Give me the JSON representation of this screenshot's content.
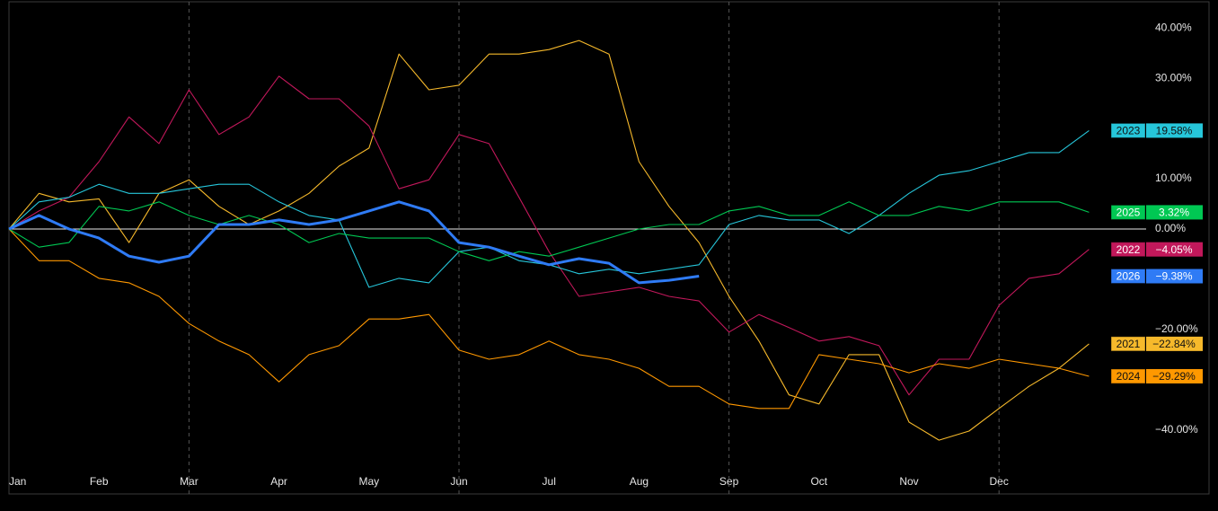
{
  "chart_data": {
    "type": "line",
    "categories": [
      "Jan",
      null,
      null,
      "Feb",
      null,
      null,
      "Mar",
      null,
      null,
      "Apr",
      null,
      null,
      "May",
      null,
      null,
      "Jun",
      null,
      null,
      "Jul",
      null,
      null,
      "Aug",
      null,
      null,
      "Sep",
      null,
      null,
      "Oct",
      null,
      null,
      "Nov",
      null,
      null,
      "Dec",
      null,
      null,
      null
    ],
    "ylim": [
      -52.7,
      45.2
    ],
    "yticks": [
      {
        "value": 40,
        "label": "40.00%"
      },
      {
        "value": 30,
        "label": "30.00%"
      },
      {
        "value": 10,
        "label": "10.00%"
      },
      {
        "value": 0,
        "label": "0.00%"
      },
      {
        "value": -20,
        "label": "−20.00%"
      },
      {
        "value": -40,
        "label": "−40.00%"
      }
    ],
    "series": [
      {
        "name": "2021",
        "color": "#f6b92b",
        "end_label": "−22.84%",
        "values": [
          0,
          7.1,
          5.4,
          6.0,
          -2.7,
          7.1,
          9.8,
          4.5,
          0.9,
          3.6,
          7.1,
          12.5,
          16.1,
          34.8,
          27.7,
          28.6,
          34.8,
          34.8,
          35.7,
          37.5,
          34.8,
          13.4,
          4.5,
          -2.7,
          -13.4,
          -22.3,
          -33.0,
          -34.8,
          -25.0,
          -25.0,
          -38.4,
          -42.0,
          -40.2,
          -35.7,
          -31.3,
          -27.7,
          -22.84
        ]
      },
      {
        "name": "2022",
        "color": "#c2185b",
        "end_label": "−4.05%",
        "values": [
          0,
          3.6,
          6.3,
          13.4,
          22.3,
          17.0,
          27.7,
          18.8,
          22.3,
          30.4,
          25.9,
          25.9,
          20.5,
          8.0,
          9.8,
          18.8,
          17.0,
          6.3,
          -4.5,
          -13.4,
          -12.5,
          -11.6,
          -13.4,
          -14.3,
          -20.5,
          -17.0,
          -19.6,
          -22.3,
          -21.4,
          -23.2,
          -33.0,
          -25.9,
          -25.9,
          -15.2,
          -9.8,
          -8.9,
          -4.05
        ]
      },
      {
        "name": "2023",
        "color": "#26c6da",
        "end_label": "19.58%",
        "values": [
          0,
          5.4,
          6.3,
          8.9,
          7.1,
          7.1,
          8.0,
          8.9,
          8.9,
          5.4,
          2.7,
          1.8,
          -11.6,
          -9.8,
          -10.7,
          -4.5,
          -3.6,
          -6.3,
          -7.1,
          -8.9,
          -8.0,
          -8.9,
          -8.0,
          -7.1,
          0.9,
          2.7,
          1.8,
          1.8,
          -0.9,
          2.7,
          7.1,
          10.7,
          11.6,
          13.4,
          15.2,
          15.2,
          19.58
        ]
      },
      {
        "name": "2024",
        "color": "#ff9800",
        "end_label": "−29.29%",
        "values": [
          0,
          -6.3,
          -6.3,
          -9.8,
          -10.7,
          -13.4,
          -18.8,
          -22.3,
          -25.0,
          -30.4,
          -25.0,
          -23.2,
          -17.9,
          -17.9,
          -17.0,
          -24.1,
          -25.9,
          -25.0,
          -22.3,
          -25.0,
          -25.9,
          -27.7,
          -31.3,
          -31.3,
          -34.8,
          -35.7,
          -35.7,
          -25.0,
          -25.9,
          -26.8,
          -28.6,
          -26.8,
          -27.7,
          -25.9,
          -26.8,
          -27.7,
          -29.29
        ]
      },
      {
        "name": "2025",
        "color": "#00c853",
        "end_label": "3.32%",
        "values": [
          0,
          -3.6,
          -2.7,
          4.5,
          3.6,
          5.4,
          2.7,
          0.9,
          2.7,
          0.9,
          -2.7,
          -0.9,
          -1.8,
          -1.8,
          -1.8,
          -4.5,
          -6.3,
          -4.5,
          -5.4,
          -3.6,
          -1.8,
          0,
          0.9,
          0.9,
          3.6,
          4.5,
          2.7,
          2.7,
          5.4,
          2.7,
          2.7,
          4.5,
          3.6,
          5.4,
          5.4,
          5.4,
          3.32
        ]
      },
      {
        "name": "2026",
        "color": "#2f7bf5",
        "end_label": "−9.38%",
        "values": [
          0,
          2.7,
          0,
          -1.8,
          -5.4,
          -6.6,
          -5.4,
          0.9,
          0.9,
          1.8,
          0.9,
          1.8,
          3.6,
          5.4,
          3.6,
          -2.7,
          -3.6,
          -5.4,
          -7.1,
          -5.9,
          -6.8,
          -10.7,
          -10.2,
          -9.38,
          null,
          null,
          null,
          null,
          null,
          null,
          null,
          null,
          null,
          null,
          null,
          null,
          null
        ]
      }
    ]
  }
}
